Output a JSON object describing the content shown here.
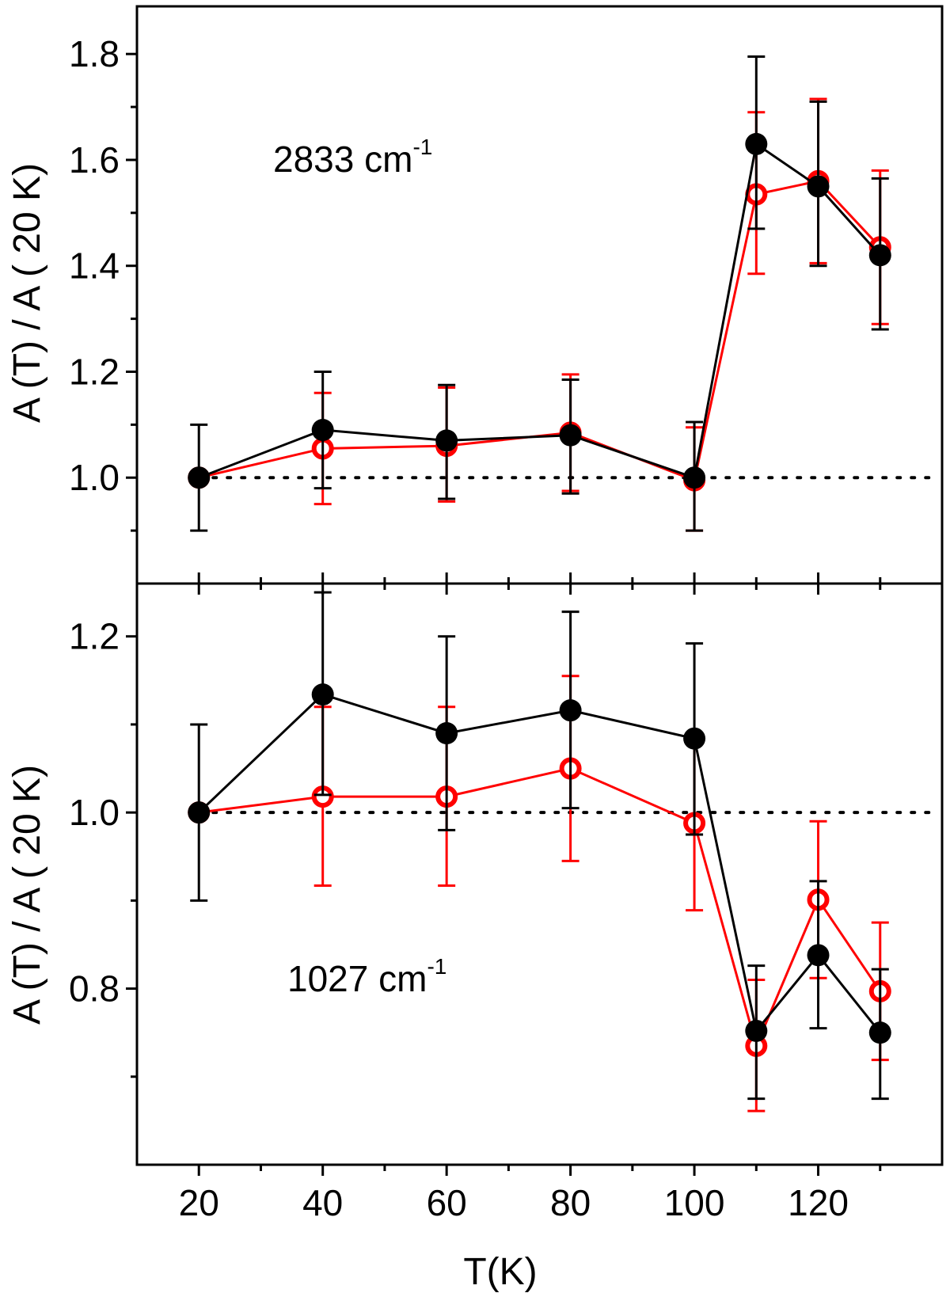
{
  "chart_data": [
    {
      "type": "scatter",
      "panel": "top",
      "annotation": {
        "text": "2833 cm",
        "superscript": "-1"
      },
      "xlabel": "T(K)",
      "ylabel": "A (T) / A ( 20 K)",
      "xlim": [
        10,
        140
      ],
      "ylim": [
        0.8,
        1.89
      ],
      "x_ticks": [
        20,
        40,
        60,
        80,
        100,
        120
      ],
      "x_tick_labels": [
        "20",
        "40",
        "60",
        "80",
        "100",
        "120"
      ],
      "y_ticks": [
        1.0,
        1.2,
        1.4,
        1.6,
        1.8
      ],
      "y_tick_labels": [
        "1.0",
        "1.2",
        "1.4",
        "1.6",
        "1.8"
      ],
      "reference_line": {
        "y": 1.0,
        "style": "dotted",
        "color": "#000000"
      },
      "series": [
        {
          "name": "filled",
          "color": "#000000",
          "marker": "filled-circle",
          "x": [
            20,
            40,
            60,
            80,
            100,
            110,
            120,
            130
          ],
          "y": [
            1.0,
            1.09,
            1.07,
            1.08,
            1.0,
            1.63,
            1.55,
            1.42
          ],
          "err_low": [
            0.9,
            0.98,
            0.96,
            0.97,
            0.9,
            1.47,
            1.4,
            1.28
          ],
          "err_high": [
            1.1,
            1.2,
            1.175,
            1.185,
            1.105,
            1.795,
            1.71,
            1.565
          ]
        },
        {
          "name": "open",
          "color": "#ff0000",
          "marker": "open-circle",
          "x": [
            20,
            40,
            60,
            80,
            100,
            110,
            120,
            130
          ],
          "y": [
            1.0,
            1.055,
            1.06,
            1.085,
            0.995,
            1.535,
            1.56,
            1.435
          ],
          "err_low": [
            1.0,
            0.95,
            0.955,
            0.975,
            0.9,
            1.385,
            1.405,
            1.29
          ],
          "err_high": [
            1.0,
            1.16,
            1.17,
            1.195,
            1.095,
            1.69,
            1.715,
            1.58
          ]
        }
      ]
    },
    {
      "type": "scatter",
      "panel": "bottom",
      "annotation": {
        "text": "1027 cm",
        "superscript": "-1"
      },
      "xlabel": "T(K)",
      "ylabel": "A (T) / A ( 20 K)",
      "xlim": [
        10,
        140
      ],
      "ylim": [
        0.6,
        1.26
      ],
      "x_ticks": [
        20,
        40,
        60,
        80,
        100,
        120
      ],
      "x_tick_labels": [
        "20",
        "40",
        "60",
        "80",
        "100",
        "120"
      ],
      "y_ticks": [
        0.8,
        1.0,
        1.2
      ],
      "y_tick_labels": [
        "0.8",
        "1.0",
        "1.2"
      ],
      "reference_line": {
        "y": 1.0,
        "style": "dotted",
        "color": "#000000"
      },
      "series": [
        {
          "name": "filled",
          "color": "#000000",
          "marker": "filled-circle",
          "x": [
            20,
            40,
            60,
            80,
            100,
            110,
            120,
            130
          ],
          "y": [
            1.0,
            1.134,
            1.09,
            1.116,
            1.084,
            0.752,
            0.838,
            0.75
          ],
          "err_low": [
            0.9,
            1.02,
            0.98,
            1.005,
            0.975,
            0.675,
            0.755,
            0.675
          ],
          "err_high": [
            1.1,
            1.25,
            1.2,
            1.228,
            1.192,
            0.826,
            0.922,
            0.822
          ]
        },
        {
          "name": "open",
          "color": "#ff0000",
          "marker": "open-circle",
          "x": [
            20,
            40,
            60,
            80,
            100,
            110,
            120,
            130
          ],
          "y": [
            1.0,
            1.018,
            1.018,
            1.05,
            0.988,
            0.735,
            0.901,
            0.797
          ],
          "err_low": [
            1.0,
            0.917,
            0.917,
            0.945,
            0.889,
            0.661,
            0.812,
            0.719
          ],
          "err_high": [
            1.0,
            1.12,
            1.12,
            1.155,
            1.09,
            0.81,
            0.99,
            0.875
          ]
        }
      ]
    }
  ]
}
